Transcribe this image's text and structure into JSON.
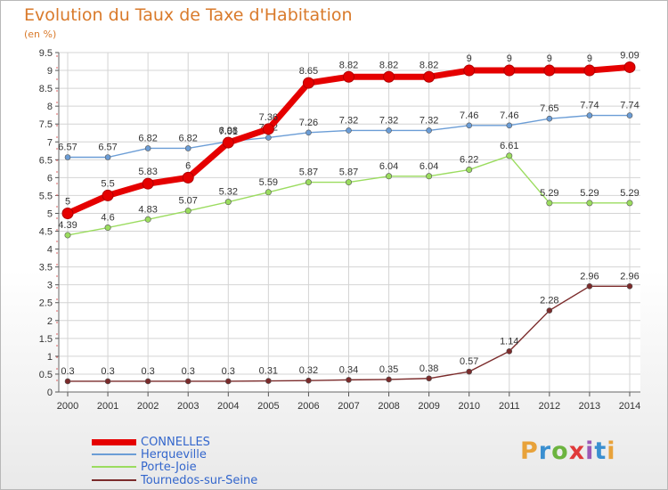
{
  "title": "Evolution du Taux de Taxe d'Habitation",
  "unit": "(en %)",
  "logo": {
    "text": "Proxiti",
    "colors": [
      "#e8a23a",
      "#3a8fd0",
      "#6cb43f",
      "#e03a3a",
      "#9b59b6",
      "#3a8fd0",
      "#e8a23a"
    ]
  },
  "chart_data": {
    "type": "line",
    "title": "Evolution du Taux de Taxe d'Habitation",
    "ylabel": "(en %)",
    "x": [
      "2000",
      "2001",
      "2002",
      "2003",
      "2004",
      "2005",
      "2006",
      "2007",
      "2008",
      "2009",
      "2010",
      "2011",
      "2012",
      "2013",
      "2014"
    ],
    "ylim": [
      0,
      9.5
    ],
    "yticks": [
      "0",
      "0.5",
      "1",
      "1.5",
      "2",
      "2.5",
      "3",
      "3.5",
      "4",
      "4.5",
      "5",
      "5.5",
      "6",
      "6.5",
      "7",
      "7.5",
      "8",
      "8.5",
      "9",
      "9.5"
    ],
    "grid": true,
    "legend_position": "bottom-left",
    "series": [
      {
        "name": "CONNELLES",
        "color": "#e50000",
        "values": [
          5,
          5.5,
          5.83,
          6,
          6.98,
          7.36,
          8.65,
          8.82,
          8.82,
          8.82,
          9,
          9,
          9,
          9,
          9.09
        ],
        "labels": [
          "5",
          "5.5",
          "5.83",
          "6",
          "6.98",
          "7.36",
          "8.65",
          "8.82",
          "8.82",
          "8.82",
          "9",
          "9",
          "9",
          "9",
          "9.09"
        ]
      },
      {
        "name": "Herqueville",
        "color": "#6b9dd6",
        "values": [
          6.57,
          6.57,
          6.82,
          6.82,
          7.01,
          7.12,
          7.26,
          7.32,
          7.32,
          7.32,
          7.46,
          7.46,
          7.65,
          7.74,
          7.74
        ],
        "labels": [
          "6.57",
          "6.57",
          "6.82",
          "6.82",
          "7.01",
          "7.12",
          "7.26",
          "7.32",
          "7.32",
          "7.32",
          "7.46",
          "7.46",
          "7.65",
          "7.74",
          "7.74"
        ]
      },
      {
        "name": "Porte-Joie",
        "color": "#9bdc5f",
        "values": [
          4.39,
          4.6,
          4.83,
          5.07,
          5.32,
          5.59,
          5.87,
          5.87,
          6.04,
          6.04,
          6.22,
          6.61,
          5.29,
          5.29,
          5.29
        ],
        "labels": [
          "4.39",
          "4.6",
          "4.83",
          "5.07",
          "5.32",
          "5.59",
          "5.87",
          "5.87",
          "6.04",
          "6.04",
          "6.22",
          "6.61",
          "5.29",
          "5.29",
          "5.29"
        ]
      },
      {
        "name": "Tournedos-sur-Seine",
        "color": "#7b2b2b",
        "values": [
          0.3,
          0.3,
          0.3,
          0.3,
          0.3,
          0.31,
          0.32,
          0.34,
          0.35,
          0.38,
          0.57,
          1.14,
          2.28,
          2.96,
          2.96
        ],
        "labels": [
          "0.3",
          "0.3",
          "0.3",
          "0.3",
          "0.3",
          "0.31",
          "0.32",
          "0.34",
          "0.35",
          "0.38",
          "0.57",
          "1.14",
          "2.28",
          "2.96",
          "2.96"
        ]
      }
    ]
  }
}
